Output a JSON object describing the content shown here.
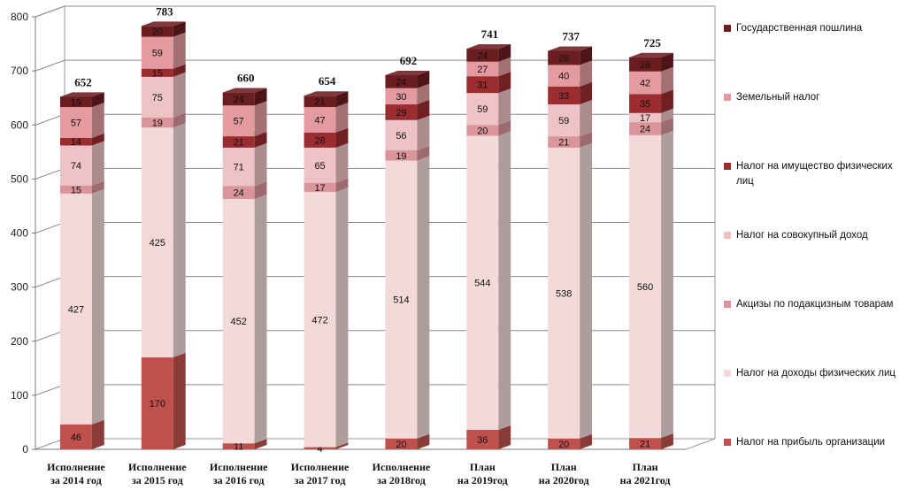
{
  "chart_data": {
    "type": "bar",
    "stacked": true,
    "three_d": true,
    "categories": [
      [
        "Исполнение",
        "за 2014 год"
      ],
      [
        "Исполнение",
        "за 2015 год"
      ],
      [
        "Исполнение",
        "за 2016 год"
      ],
      [
        "Исполнение",
        "за 2017 год"
      ],
      [
        "Исполнение",
        "за 2018год"
      ],
      [
        "План",
        "на 2019год"
      ],
      [
        "План",
        "на 2020год"
      ],
      [
        "План",
        "на 2021год"
      ]
    ],
    "series": [
      {
        "name": "Налог на прибыль организации",
        "color": "#c0504d",
        "values": [
          46,
          170,
          11,
          4,
          20,
          36,
          20,
          21
        ]
      },
      {
        "name": "Налог на доходы физических лиц",
        "color": "#f3d9d8",
        "values": [
          427,
          425,
          452,
          472,
          514,
          544,
          538,
          560
        ]
      },
      {
        "name": "Акцизы по подакцизным товарам",
        "color": "#d9959a",
        "values": [
          15,
          19,
          24,
          17,
          19,
          20,
          21,
          24
        ]
      },
      {
        "name": "Налог на совокупный доход",
        "color": "#edc3c5",
        "values": [
          74,
          75,
          71,
          65,
          56,
          59,
          59,
          17
        ]
      },
      {
        "name": "Налог на имущество физических лиц",
        "color": "#9b2d30",
        "values": [
          14,
          15,
          21,
          28,
          29,
          31,
          33,
          35
        ]
      },
      {
        "name": "Земельный  налог",
        "color": "#e39ba0",
        "values": [
          57,
          59,
          57,
          47,
          30,
          27,
          40,
          42
        ]
      },
      {
        "name": "Государственная пошлина",
        "color": "#6b1d20",
        "values": [
          19,
          20,
          24,
          21,
          24,
          24,
          26,
          26
        ]
      }
    ],
    "totals": [
      652,
      783,
      660,
      654,
      692,
      741,
      737,
      725
    ],
    "ylim": [
      0,
      800
    ],
    "yticks": [
      0,
      100,
      200,
      300,
      400,
      500,
      600,
      700,
      800
    ],
    "grid": true,
    "legend_position": "right",
    "legend_order": [
      6,
      5,
      4,
      3,
      2,
      1,
      0
    ]
  }
}
